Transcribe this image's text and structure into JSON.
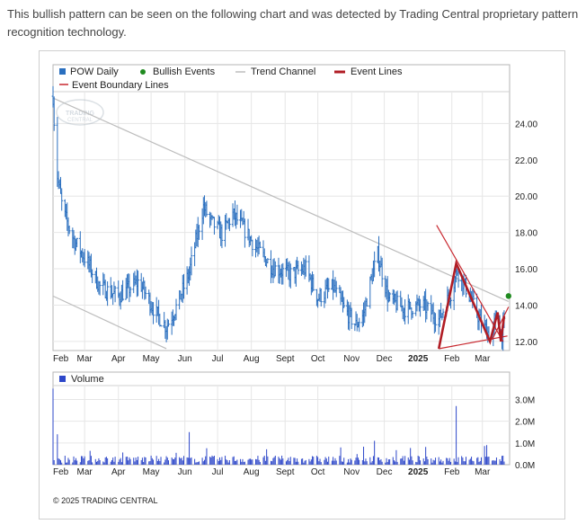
{
  "intro_text": "This bullish pattern can be seen on the following chart and was detected by Trading Central proprietary pattern recognition technology.",
  "colors": {
    "price": "#2a6fbf",
    "volume": "#2d47c9",
    "bullish": "#1f8a1f",
    "trend": "#bdbdbd",
    "event": "#b01c24",
    "boundary": "#c8282f",
    "grid": "#e6e6e6"
  },
  "legend": {
    "pow_daily": "POW Daily",
    "bullish_events": "Bullish Events",
    "trend_channel": "Trend Channel",
    "event_lines": "Event Lines",
    "event_boundary": "Event Boundary Lines"
  },
  "watermark": "TRADING CENTRAL",
  "copyright": "© 2025 TRADING CENTRAL",
  "chart_data": [
    {
      "type": "line",
      "style": "ohlc-bars",
      "title": "",
      "series_name": "POW Daily",
      "x_ticks": [
        "Feb",
        "Mar",
        "Apr",
        "May",
        "Jun",
        "Jul",
        "Aug",
        "Sept",
        "Oct",
        "Nov",
        "Dec",
        "2025",
        "Feb",
        "Mar"
      ],
      "y_ticks": [
        "24.00",
        "22.00",
        "20.00",
        "18.00",
        "16.00",
        "14.00",
        "12.00"
      ],
      "ylim": [
        11.5,
        25.7
      ],
      "grid": true,
      "legend_position": "top-left",
      "price_anchors": [
        [
          "2024-02-01",
          25.5
        ],
        [
          "2024-02-04",
          21.5
        ],
        [
          "2024-02-10",
          19.2
        ],
        [
          "2024-02-20",
          17.6
        ],
        [
          "2024-03-05",
          16.2
        ],
        [
          "2024-03-15",
          15.0
        ],
        [
          "2024-04-01",
          14.5
        ],
        [
          "2024-04-20",
          15.3
        ],
        [
          "2024-05-05",
          13.6
        ],
        [
          "2024-05-15",
          12.8
        ],
        [
          "2024-05-25",
          14.0
        ],
        [
          "2024-06-05",
          15.8
        ],
        [
          "2024-06-12",
          17.8
        ],
        [
          "2024-06-18",
          19.4
        ],
        [
          "2024-06-25",
          18.6
        ],
        [
          "2024-07-05",
          17.9
        ],
        [
          "2024-07-15",
          19.0
        ],
        [
          "2024-07-25",
          18.2
        ],
        [
          "2024-08-05",
          17.2
        ],
        [
          "2024-08-20",
          16.1
        ],
        [
          "2024-09-05",
          15.7
        ],
        [
          "2024-09-20",
          16.0
        ],
        [
          "2024-10-01",
          14.4
        ],
        [
          "2024-10-15",
          15.0
        ],
        [
          "2024-10-25",
          13.8
        ],
        [
          "2024-11-05",
          12.9
        ],
        [
          "2024-11-12",
          13.5
        ],
        [
          "2024-11-18",
          15.2
        ],
        [
          "2024-11-25",
          16.8
        ],
        [
          "2024-12-05",
          14.3
        ],
        [
          "2024-12-20",
          13.8
        ],
        [
          "2025-01-05",
          14.0
        ],
        [
          "2025-01-20",
          13.2
        ],
        [
          "2025-02-01",
          14.8
        ],
        [
          "2025-02-06",
          15.9
        ],
        [
          "2025-02-15",
          14.8
        ],
        [
          "2025-02-28",
          13.0
        ],
        [
          "2025-03-10",
          12.2
        ],
        [
          "2025-03-14",
          13.5
        ],
        [
          "2025-03-18",
          12.2
        ],
        [
          "2025-03-22",
          13.1
        ]
      ],
      "trend_channel": {
        "upper": [
          [
            "2024-02-01",
            25.4
          ],
          [
            "2025-03-25",
            14.2
          ]
        ],
        "lower": [
          [
            "2024-02-01",
            14.5
          ],
          [
            "2024-05-15",
            11.6
          ]
        ]
      },
      "event_lines": [
        [
          "2025-01-20",
          11.6
        ],
        [
          "2025-02-05",
          16.3
        ],
        [
          "2025-03-08",
          12.0
        ],
        [
          "2025-03-15",
          13.6
        ],
        [
          "2025-03-18",
          12.0
        ],
        [
          "2025-03-21",
          13.4
        ]
      ],
      "event_boundary_lines": [
        [
          [
            "2025-01-18",
            18.4
          ],
          [
            "2025-03-20",
            12.0
          ]
        ],
        [
          [
            "2025-01-20",
            11.6
          ],
          [
            "2025-03-24",
            12.3
          ]
        ],
        [
          [
            "2025-03-10",
            12.1
          ],
          [
            "2025-03-25",
            13.9
          ]
        ]
      ],
      "bullish_events": [
        [
          "2025-03-25",
          14.5
        ]
      ]
    },
    {
      "type": "bar",
      "series_name": "Volume",
      "x_ticks": [
        "Feb",
        "Mar",
        "Apr",
        "May",
        "Jun",
        "Jul",
        "Aug",
        "Sept",
        "Oct",
        "Nov",
        "Dec",
        "2025",
        "Feb",
        "Mar"
      ],
      "y_ticks": [
        "3.0M",
        "2.0M",
        "1.0M",
        "0.0M"
      ],
      "ylim": [
        0,
        3.6
      ],
      "unit": "M",
      "typical_volume": 0.3,
      "spikes": [
        [
          "2024-02-01",
          3.5
        ],
        [
          "2024-02-05",
          1.4
        ],
        [
          "2024-05-05",
          1.3
        ],
        [
          "2024-06-05",
          1.5
        ],
        [
          "2024-11-22",
          1.1
        ],
        [
          "2025-02-05",
          2.7
        ],
        [
          "2025-02-08",
          1.2
        ],
        [
          "2025-03-05",
          0.9
        ]
      ]
    }
  ]
}
